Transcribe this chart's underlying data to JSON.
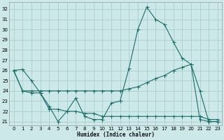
{
  "xlabel": "Humidex (Indice chaleur)",
  "bg_color": "#cce8e8",
  "grid_color": "#aacccc",
  "line_color": "#1a6e6a",
  "xlim": [
    -0.5,
    23.5
  ],
  "ylim": [
    20.6,
    32.7
  ],
  "yticks": [
    21,
    22,
    23,
    24,
    25,
    26,
    27,
    28,
    29,
    30,
    31,
    32
  ],
  "xticks": [
    0,
    1,
    2,
    3,
    4,
    5,
    6,
    7,
    8,
    9,
    10,
    11,
    12,
    13,
    14,
    15,
    16,
    17,
    18,
    19,
    20,
    21,
    22,
    23
  ],
  "line1_y": [
    26.0,
    26.1,
    25.0,
    23.8,
    22.5,
    21.0,
    22.0,
    23.3,
    21.5,
    21.2,
    21.2,
    22.8,
    23.0,
    26.2,
    30.0,
    32.2,
    31.0,
    30.5,
    28.8,
    27.2,
    26.6,
    21.2,
    21.0,
    21.0
  ],
  "line2_y": [
    26.0,
    24.0,
    23.8,
    23.8,
    22.2,
    22.2,
    22.0,
    22.0,
    21.8,
    21.8,
    21.5,
    21.5,
    21.5,
    21.5,
    21.5,
    21.5,
    21.5,
    21.5,
    21.5,
    21.5,
    21.5,
    21.5,
    21.2,
    21.2
  ],
  "line3_y": [
    26.0,
    24.0,
    24.0,
    24.0,
    24.0,
    24.0,
    24.0,
    24.0,
    24.0,
    24.0,
    24.0,
    24.0,
    24.0,
    24.2,
    24.4,
    24.8,
    25.2,
    25.5,
    26.0,
    26.3,
    26.6,
    24.0,
    21.0,
    21.0
  ]
}
